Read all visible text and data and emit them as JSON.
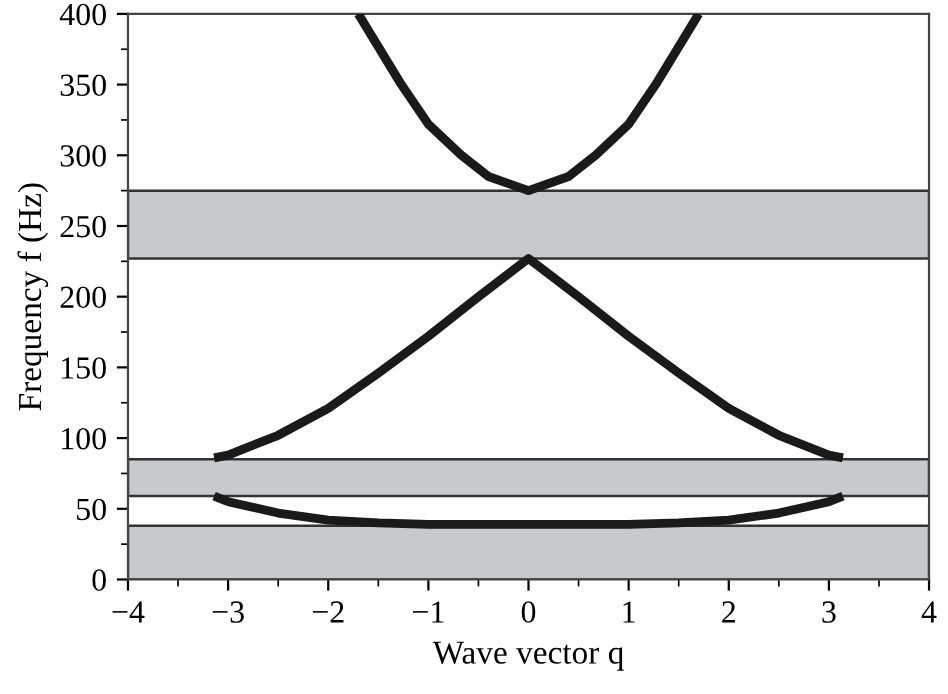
{
  "chart_data": {
    "type": "line",
    "xlabel": "Wave vector q",
    "ylabel": "Frequency f (Hz)",
    "xlim": [
      -4,
      4
    ],
    "ylim": [
      0,
      400
    ],
    "xticks": [
      {
        "value": -4,
        "label": "−4"
      },
      {
        "value": -3,
        "label": "−3"
      },
      {
        "value": -2,
        "label": "−2"
      },
      {
        "value": -1,
        "label": "−1"
      },
      0,
      1,
      2,
      3,
      4
    ],
    "yticks": [
      0,
      50,
      100,
      150,
      200,
      250,
      300,
      350,
      400
    ],
    "grid": false,
    "marker": "none",
    "line_style": "solid",
    "series": [
      {
        "color": "#1a1a1a",
        "x": [
          -3.14,
          -3,
          -2.5,
          -2,
          -1.5,
          -1,
          -0.5,
          0,
          0.5,
          1,
          1.5,
          2,
          2.5,
          3,
          3.14
        ],
        "values": [
          59,
          55,
          47,
          42,
          40,
          39,
          39,
          39,
          39,
          39,
          40,
          42,
          47,
          55,
          59
        ]
      },
      {
        "color": "#1a1a1a",
        "x": [
          -3.14,
          -3,
          -2.5,
          -2,
          -1.5,
          -1,
          -0.5,
          0,
          0.5,
          1,
          1.5,
          2,
          2.5,
          3,
          3.14
        ],
        "values": [
          86,
          88,
          102,
          121,
          146,
          172,
          200,
          227,
          200,
          172,
          146,
          121,
          102,
          88,
          86
        ]
      },
      {
        "color": "#1a1a1a",
        "x": [
          -1.7,
          -1.27,
          -1,
          -0.67,
          -0.4,
          0,
          0.4,
          0.67,
          1,
          1.27,
          1.7
        ],
        "values": [
          400,
          350,
          322,
          300,
          285,
          275,
          285,
          300,
          322,
          350,
          400
        ]
      }
    ],
    "bands": [
      {
        "axis": "y",
        "from": 0,
        "to": 38,
        "color": "#c8c9cb"
      },
      {
        "axis": "y",
        "from": 59,
        "to": 85,
        "color": "#c8c9cb"
      },
      {
        "axis": "y",
        "from": 227,
        "to": 275,
        "color": "#c8c9cb"
      }
    ]
  }
}
